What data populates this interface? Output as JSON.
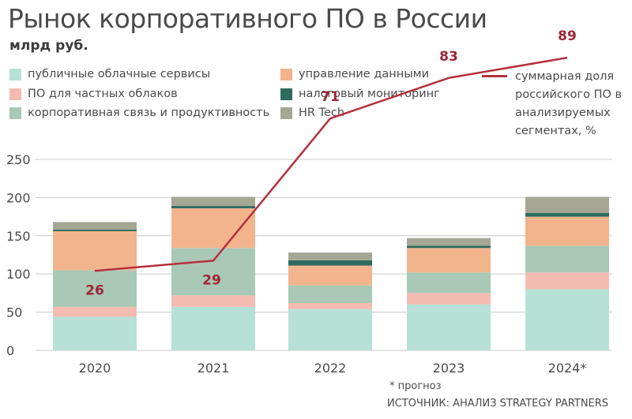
{
  "header": {
    "title": "Рынок корпоративного ПО в России",
    "subtitle": "млрд руб."
  },
  "legend": {
    "items": [
      {
        "label": "публичные облачные сервисы",
        "color": "#b7e0d6"
      },
      {
        "label": "ПО для частных облаков",
        "color": "#f4bcb0"
      },
      {
        "label": "корпоративная связь и продуктивность",
        "color": "#a9c8b6"
      },
      {
        "label": "управление данными",
        "color": "#f2b48c"
      },
      {
        "label": "налоговый мониторинг",
        "color": "#2e6b5e"
      },
      {
        "label": "HR Tech",
        "color": "#a6a793"
      }
    ],
    "line_label": "суммарная доля российского ПО в анализируемых сегментах, %",
    "line_color": "#b5303e"
  },
  "chart_data": {
    "type": "bar",
    "stacked": true,
    "categories": [
      "2020",
      "2021",
      "2022",
      "2023",
      "2024*"
    ],
    "ylim": [
      0,
      250
    ],
    "yticks": [
      "0",
      "50",
      "100",
      "150",
      "200",
      "250"
    ],
    "grid": true,
    "series": [
      {
        "name": "публичные облачные сервисы",
        "color": "#b7e0d6",
        "values": [
          44,
          57,
          54,
          60,
          80
        ]
      },
      {
        "name": "ПО для частных облаков",
        "color": "#f4bcb0",
        "values": [
          13,
          15,
          8,
          15,
          22
        ]
      },
      {
        "name": "корпоративная связь и продуктивность",
        "color": "#a9c8b6",
        "values": [
          48,
          62,
          23,
          27,
          35
        ]
      },
      {
        "name": "управление данными",
        "color": "#f2b48c",
        "values": [
          51,
          52,
          26,
          32,
          38
        ]
      },
      {
        "name": "налоговый мониторинг",
        "color": "#2e6b5e",
        "values": [
          2,
          3,
          7,
          3,
          5
        ]
      },
      {
        "name": "HR Tech",
        "color": "#a6a793",
        "values": [
          10,
          12,
          10,
          10,
          21
        ]
      }
    ],
    "line": {
      "name": "суммарная доля российского ПО в анализируемых сегментах, %",
      "values": [
        26,
        29,
        71,
        83,
        89
      ],
      "labels": [
        "26",
        "29",
        "71",
        "83",
        "89"
      ],
      "color": "#b5303e"
    }
  },
  "footer": {
    "note": "* прогноз",
    "source": "ИСТОЧНИК: АНАЛИЗ STRATEGY PARTNERS"
  }
}
